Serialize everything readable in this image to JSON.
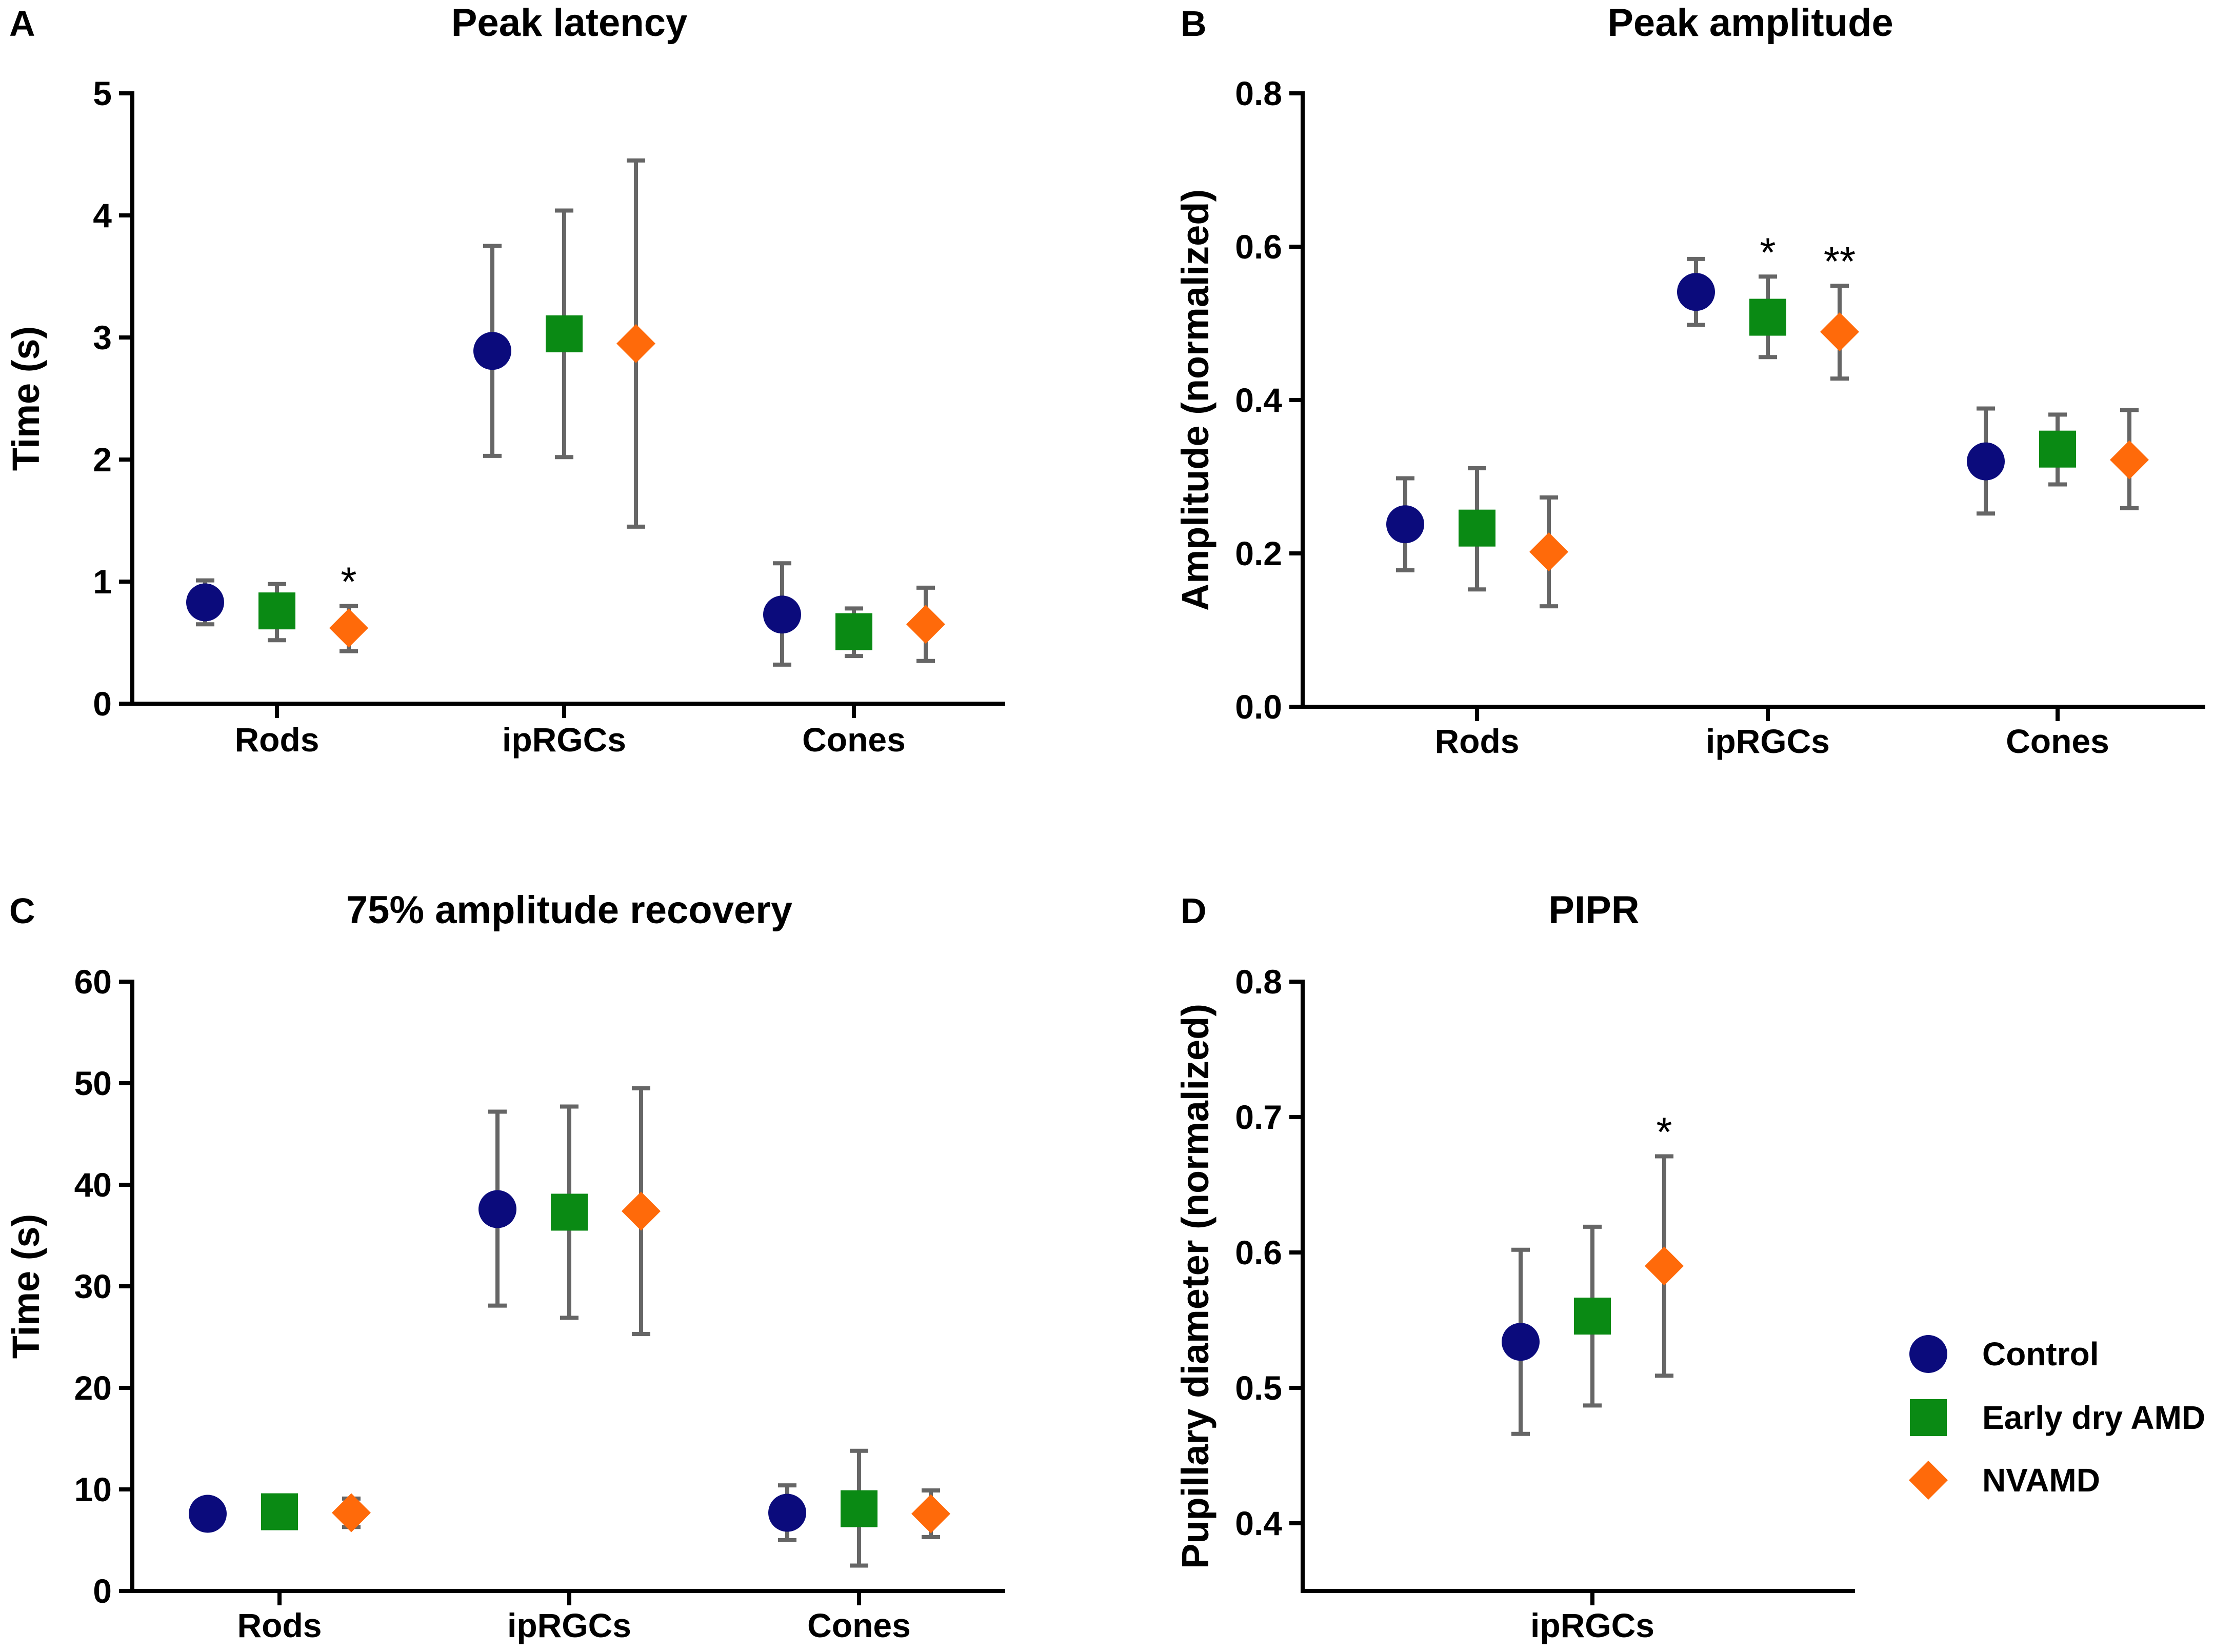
{
  "colors": {
    "control": "#0b0b7c",
    "early_dry_amd": "#0a8a14",
    "nvamd": "#ff6a0a",
    "error_bar": "#666666"
  },
  "legend": {
    "items": [
      {
        "key": "control",
        "label": "Control",
        "marker": "circle"
      },
      {
        "key": "early_dry_amd",
        "label": "Early dry AMD",
        "marker": "square"
      },
      {
        "key": "nvamd",
        "label": "NVAMD",
        "marker": "diamond"
      }
    ]
  },
  "chart_data": [
    {
      "id": "A",
      "letter": "A",
      "type": "scatter",
      "title": "Peak latency",
      "xlabel": "",
      "ylabel": "Time (s)",
      "categories": [
        "Rods",
        "ipRGCs",
        "Cones"
      ],
      "ylim": [
        0,
        5
      ],
      "yticks": [
        0,
        1,
        2,
        3,
        4,
        5
      ],
      "ytick_labels": [
        "0",
        "1",
        "2",
        "3",
        "4",
        "5"
      ],
      "series": [
        {
          "name": "Control",
          "key": "control",
          "values": [
            0.83,
            2.89,
            0.73
          ],
          "err_low": [
            0.65,
            2.03,
            0.32
          ],
          "err_high": [
            1.01,
            3.75,
            1.15
          ]
        },
        {
          "name": "Early dry AMD",
          "key": "early_dry_amd",
          "values": [
            0.76,
            3.03,
            0.59
          ],
          "err_low": [
            0.52,
            2.02,
            0.39
          ],
          "err_high": [
            0.98,
            4.04,
            0.78
          ]
        },
        {
          "name": "NVAMD",
          "key": "nvamd",
          "values": [
            0.62,
            2.95,
            0.65
          ],
          "err_low": [
            0.43,
            1.45,
            0.35
          ],
          "err_high": [
            0.8,
            4.45,
            0.95
          ]
        }
      ],
      "annotations": [
        {
          "text": "*",
          "category": 0,
          "series": 2
        }
      ]
    },
    {
      "id": "B",
      "letter": "B",
      "type": "scatter",
      "title": "Peak amplitude",
      "xlabel": "",
      "ylabel": "Amplitude (normalized)",
      "categories": [
        "Rods",
        "ipRGCs",
        "Cones"
      ],
      "ylim": [
        0,
        0.8
      ],
      "yticks": [
        0,
        0.2,
        0.4,
        0.6,
        0.8
      ],
      "ytick_labels": [
        "0.0",
        "0.2",
        "0.4",
        "0.6",
        "0.8"
      ],
      "series": [
        {
          "name": "Control",
          "key": "control",
          "values": [
            0.238,
            0.541,
            0.32
          ],
          "err_low": [
            0.178,
            0.498,
            0.252
          ],
          "err_high": [
            0.298,
            0.584,
            0.389
          ]
        },
        {
          "name": "Early dry AMD",
          "key": "early_dry_amd",
          "values": [
            0.233,
            0.508,
            0.336
          ],
          "err_low": [
            0.153,
            0.456,
            0.29
          ],
          "err_high": [
            0.311,
            0.561,
            0.381
          ]
        },
        {
          "name": "NVAMD",
          "key": "nvamd",
          "values": [
            0.202,
            0.489,
            0.322
          ],
          "err_low": [
            0.131,
            0.428,
            0.259
          ],
          "err_high": [
            0.273,
            0.549,
            0.387
          ]
        }
      ],
      "annotations": [
        {
          "text": "*",
          "category": 1,
          "series": 1
        },
        {
          "text": "**",
          "category": 1,
          "series": 2
        }
      ]
    },
    {
      "id": "C",
      "letter": "C",
      "type": "scatter",
      "title": "75% amplitude recovery",
      "xlabel": "",
      "ylabel": "Time (s)",
      "categories": [
        "Rods",
        "ipRGCs",
        "Cones"
      ],
      "ylim": [
        0,
        60
      ],
      "yticks": [
        0,
        10,
        20,
        30,
        40,
        50,
        60
      ],
      "ytick_labels": [
        "0",
        "10",
        "20",
        "30",
        "40",
        "50",
        "60"
      ],
      "series": [
        {
          "name": "Control",
          "key": "control",
          "values": [
            7.6,
            37.6,
            7.7
          ],
          "err_low": [
            6.8,
            28.1,
            5.0
          ],
          "err_high": [
            8.4,
            47.2,
            10.4
          ]
        },
        {
          "name": "Early dry AMD",
          "key": "early_dry_amd",
          "values": [
            7.8,
            37.3,
            8.1
          ],
          "err_low": [
            6.2,
            26.9,
            2.5
          ],
          "err_high": [
            9.4,
            47.7,
            13.8
          ]
        },
        {
          "name": "NVAMD",
          "key": "nvamd",
          "values": [
            7.7,
            37.4,
            7.6
          ],
          "err_low": [
            6.3,
            25.3,
            5.3
          ],
          "err_high": [
            9.1,
            49.5,
            9.9
          ]
        }
      ],
      "annotations": []
    },
    {
      "id": "D",
      "letter": "D",
      "type": "scatter",
      "title": "PIPR",
      "xlabel": "",
      "ylabel": "Pupillary diameter (normalized)",
      "categories": [
        "ipRGCs"
      ],
      "ylim": [
        0.35,
        0.8
      ],
      "yticks": [
        0.4,
        0.5,
        0.6,
        0.7,
        0.8
      ],
      "ytick_labels": [
        "0.4",
        "0.5",
        "0.6",
        "0.7",
        "0.8"
      ],
      "series": [
        {
          "name": "Control",
          "key": "control",
          "values": [
            0.534
          ],
          "err_low": [
            0.466
          ],
          "err_high": [
            0.602
          ]
        },
        {
          "name": "Early dry AMD",
          "key": "early_dry_amd",
          "values": [
            0.553
          ],
          "err_low": [
            0.487
          ],
          "err_high": [
            0.619
          ]
        },
        {
          "name": "NVAMD",
          "key": "nvamd",
          "values": [
            0.59
          ],
          "err_low": [
            0.509
          ],
          "err_high": [
            0.671
          ]
        }
      ],
      "annotations": [
        {
          "text": "*",
          "category": 0,
          "series": 2
        }
      ]
    }
  ]
}
